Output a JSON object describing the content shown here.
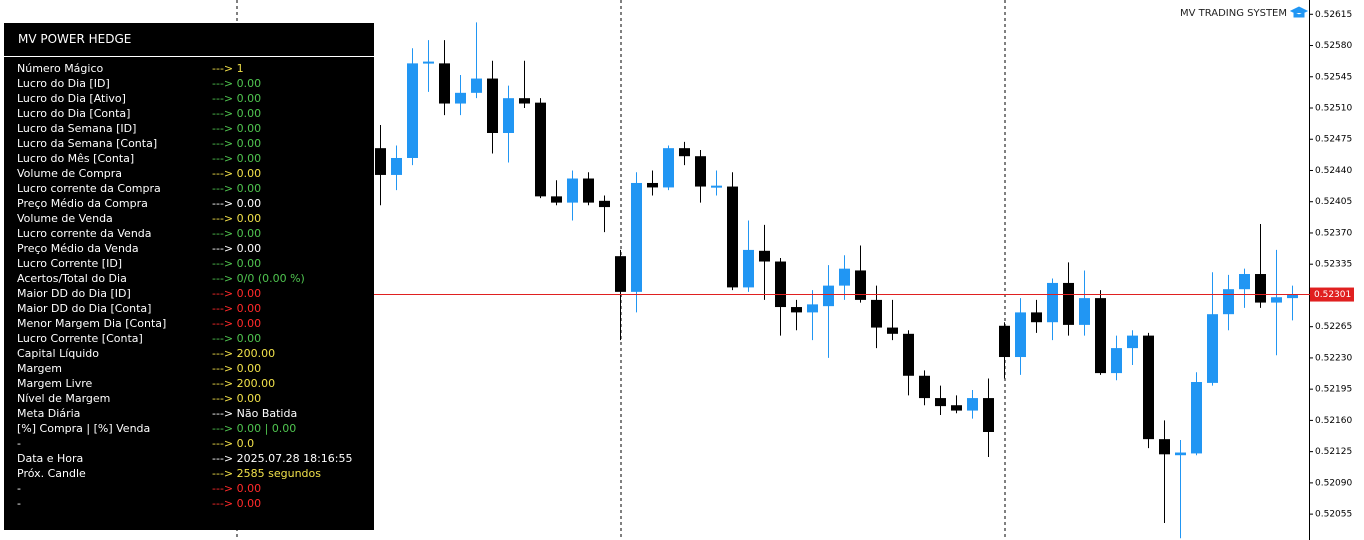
{
  "brand": "MV TRADING SYSTEM",
  "panel": {
    "title": "MV POWER HEDGE",
    "rows": [
      {
        "label": "Número Mágico",
        "value": "---> 1",
        "color": "#f0e04a"
      },
      {
        "label": "Lucro do Dia [ID]",
        "value": "---> 0.00",
        "color": "#4fc34f"
      },
      {
        "label": "Lucro do Dia [Ativo]",
        "value": "---> 0.00",
        "color": "#4fc34f"
      },
      {
        "label": "Lucro do Dia [Conta]",
        "value": "---> 0.00",
        "color": "#4fc34f"
      },
      {
        "label": "Lucro da Semana [ID]",
        "value": "---> 0.00",
        "color": "#4fc34f"
      },
      {
        "label": "Lucro da Semana [Conta]",
        "value": "---> 0.00",
        "color": "#4fc34f"
      },
      {
        "label": "Lucro do Mês [Conta]",
        "value": "---> 0.00",
        "color": "#4fc34f"
      },
      {
        "label": "Volume de Compra",
        "value": "---> 0.00",
        "color": "#f0e04a"
      },
      {
        "label": "Lucro corrente da Compra",
        "value": "---> 0.00",
        "color": "#4fc34f"
      },
      {
        "label": "Preço Médio da Compra",
        "value": "---> 0.00",
        "color": "#ffffff"
      },
      {
        "label": "Volume de Venda",
        "value": "---> 0.00",
        "color": "#f0e04a"
      },
      {
        "label": "Lucro corrente da Venda",
        "value": "---> 0.00",
        "color": "#4fc34f"
      },
      {
        "label": "Preço Médio da Venda",
        "value": "---> 0.00",
        "color": "#ffffff"
      },
      {
        "label": "Lucro Corrente [ID]",
        "value": "---> 0.00",
        "color": "#4fc34f"
      },
      {
        "label": "Acertos/Total do Dia",
        "value": "---> 0/0 (0.00 %)",
        "color": "#4fc34f"
      },
      {
        "label": "Maior DD do Dia [ID]",
        "value": "---> 0.00",
        "color": "#ff2a2a"
      },
      {
        "label": "Maior DD do Dia [Conta]",
        "value": "---> 0.00",
        "color": "#ff2a2a"
      },
      {
        "label": "Menor Margem Dia [Conta]",
        "value": "---> 0.00",
        "color": "#ff2a2a"
      },
      {
        "label": "Lucro Corrente [Conta]",
        "value": "---> 0.00",
        "color": "#4fc34f"
      },
      {
        "label": "Capital Líquido",
        "value": "---> 200.00",
        "color": "#f0e04a"
      },
      {
        "label": "Margem",
        "value": "---> 0.00",
        "color": "#f0e04a"
      },
      {
        "label": "Margem Livre",
        "value": "---> 200.00",
        "color": "#f0e04a"
      },
      {
        "label": "Nível de Margem",
        "value": "---> 0.00",
        "color": "#f0e04a"
      },
      {
        "label": "Meta Diária",
        "value": "---> Não Batida",
        "color": "#ffffff"
      },
      {
        "label": "[%] Compra | [%] Venda",
        "value": "---> 0.00 | 0.00",
        "color": "#4fc34f"
      },
      {
        "label": "-",
        "value": "---> 0.0",
        "color": "#f0e04a"
      },
      {
        "label": "Data e Hora",
        "value": "---> 2025.07.28 18:16:55",
        "color": "#ffffff"
      },
      {
        "label": "Próx. Candle",
        "value": "---> 2585 segundos",
        "color": "#f0e04a"
      },
      {
        "label": "-",
        "value": "---> 0.00",
        "color": "#ff2a2a"
      },
      {
        "label": "-",
        "value": "---> 0.00",
        "color": "#ff2a2a"
      }
    ]
  },
  "chart_data": {
    "type": "candlestick",
    "up_color": "#2196f3",
    "down_color": "#000000",
    "current_color": "#e02020",
    "ylim": [
      0.52026,
      0.52631
    ],
    "yticks": [
      0.52615,
      {
        "value": 0.5258,
        "label": "0.52580"
      },
      0.52545,
      {
        "value": 0.5251,
        "label": "0.52510"
      },
      0.52475,
      {
        "value": 0.5244,
        "label": "0.52440"
      },
      0.52405,
      {
        "value": 0.5237,
        "label": "0.52370"
      },
      0.52335,
      0.52265,
      {
        "value": 0.5223,
        "label": "0.52230"
      },
      0.52195,
      {
        "value": 0.5216,
        "label": "0.52160"
      },
      0.52125,
      {
        "value": 0.5209,
        "label": "0.52090"
      },
      0.52055
    ],
    "current_price": 0.52301,
    "open": [
      0.52465,
      0.52435,
      0.52454,
      0.5256,
      0.5256,
      0.52515,
      0.52527,
      0.52543,
      0.52482,
      0.52521,
      0.52516,
      0.52411,
      0.52404,
      0.52431,
      0.52406,
      0.52344,
      0.52304,
      0.52426,
      0.52421,
      0.52465,
      0.52456,
      0.52421,
      0.52422,
      0.52309,
      0.5235,
      0.52338,
      0.52287,
      0.52281,
      0.52288,
      0.52311,
      0.52328,
      0.52295,
      0.52264,
      0.52257,
      0.5221,
      0.52185,
      0.52177,
      0.52171,
      0.52185,
      0.52266,
      0.52231,
      0.52281,
      0.5227,
      0.52314,
      0.52267,
      0.52297,
      0.52213,
      0.52241,
      0.52255,
      0.52139,
      0.52121,
      0.52123,
      0.52202,
      0.52279,
      0.52307,
      0.52324,
      0.52292,
      0.52297
    ],
    "high": [
      0.52491,
      0.52468,
      0.52577,
      0.52586,
      0.52586,
      0.52547,
      0.52606,
      0.52563,
      0.52535,
      0.52563,
      0.52521,
      0.52429,
      0.5244,
      0.52438,
      0.52412,
      0.52351,
      0.52438,
      0.5244,
      0.52468,
      0.52472,
      0.52463,
      0.5244,
      0.52438,
      0.52384,
      0.52379,
      0.52342,
      0.52295,
      0.52306,
      0.52334,
      0.52345,
      0.52356,
      0.52311,
      0.52295,
      0.52261,
      0.52216,
      0.52199,
      0.52188,
      0.52194,
      0.52207,
      0.5227,
      0.52297,
      0.52295,
      0.52319,
      0.52337,
      0.52328,
      0.52306,
      0.52255,
      0.52261,
      0.52258,
      0.5216,
      0.52138,
      0.52214,
      0.52326,
      0.52323,
      0.5233,
      0.5238,
      0.52351,
      0.52311
    ],
    "low": [
      0.52401,
      0.52418,
      0.52446,
      0.52528,
      0.52502,
      0.52502,
      0.52521,
      0.52459,
      0.52449,
      0.5251,
      0.52409,
      0.52401,
      0.52384,
      0.52401,
      0.52371,
      0.5225,
      0.52281,
      0.52412,
      0.52418,
      0.52446,
      0.52404,
      0.52412,
      0.52306,
      0.52304,
      0.52295,
      0.52255,
      0.52261,
      0.5225,
      0.5223,
      0.52295,
      0.52292,
      0.52241,
      0.5225,
      0.52188,
      0.52177,
      0.52166,
      0.52168,
      0.52162,
      0.52119,
      0.52207,
      0.52211,
      0.52258,
      0.5225,
      0.52255,
      0.52255,
      0.52211,
      0.52205,
      0.52222,
      0.52129,
      0.52045,
      0.52028,
      0.52121,
      0.52199,
      0.52261,
      0.52286,
      0.52286,
      0.52233,
      0.52272
    ],
    "close": [
      0.52435,
      0.52454,
      0.5256,
      0.52562,
      0.52515,
      0.52527,
      0.52543,
      0.52482,
      0.52521,
      0.52515,
      0.52411,
      0.52404,
      0.52431,
      0.52404,
      0.52399,
      0.52304,
      0.52426,
      0.52421,
      0.52465,
      0.52456,
      0.52422,
      0.52423,
      0.52309,
      0.52351,
      0.52338,
      0.52287,
      0.52281,
      0.5229,
      0.52311,
      0.5233,
      0.52295,
      0.52264,
      0.52257,
      0.5221,
      0.52185,
      0.52176,
      0.52171,
      0.52185,
      0.52147,
      0.52231,
      0.52281,
      0.5227,
      0.52314,
      0.52267,
      0.52297,
      0.52213,
      0.52241,
      0.52255,
      0.52139,
      0.52122,
      0.52124,
      0.52203,
      0.52279,
      0.52307,
      0.52324,
      0.52292,
      0.52298,
      0.52301
    ]
  }
}
